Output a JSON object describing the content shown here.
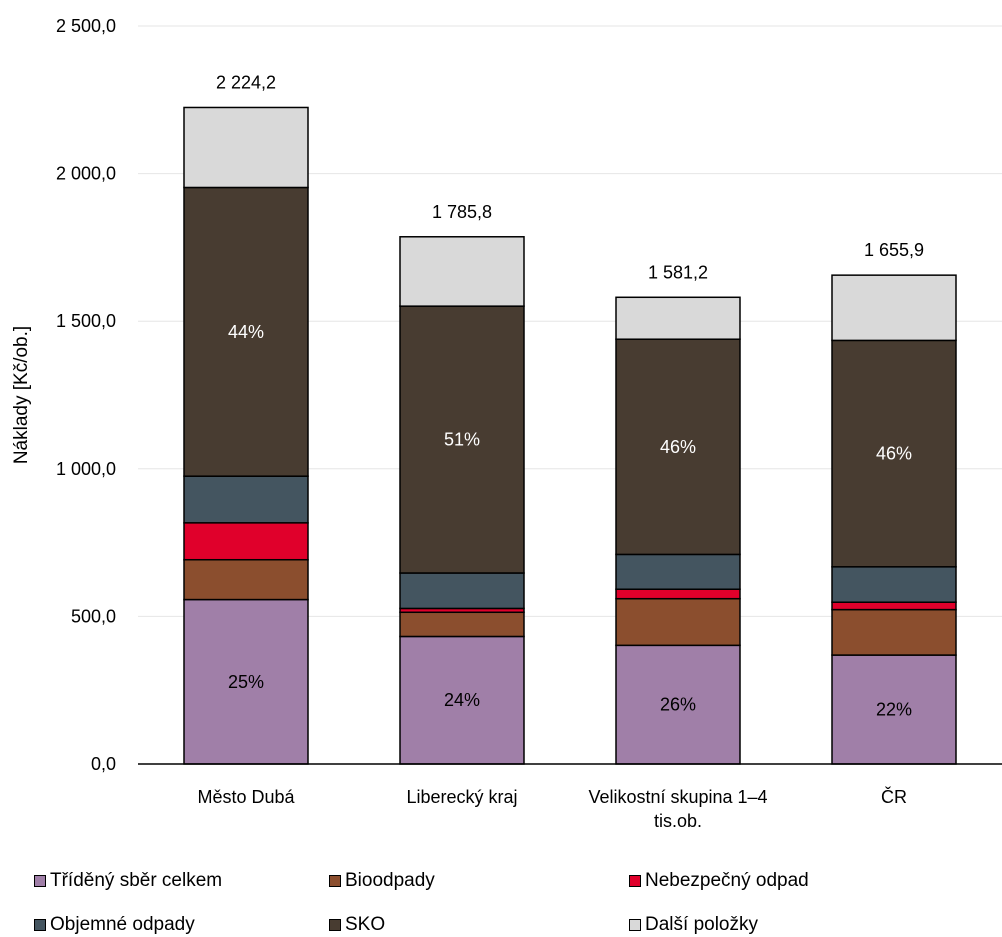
{
  "chart_data": {
    "type": "bar",
    "stacked": true,
    "ylabel": "Náklady [Kč/ob.]",
    "ylim": [
      0,
      2500
    ],
    "yticks": [
      "0,0",
      "500,0",
      "1 000,0",
      "1 500,0",
      "2 000,0",
      "2 500,0"
    ],
    "ytick_values": [
      0,
      500,
      1000,
      1500,
      2000,
      2500
    ],
    "grid": true,
    "legend_position": "bottom",
    "categories": [
      "Město Dubá",
      "Liberecký kraj",
      "Velikostní skupina 1–4 tis.ob.",
      "ČR"
    ],
    "category_lines": [
      [
        "Město Dubá"
      ],
      [
        "Liberecký kraj"
      ],
      [
        "Velikostní skupina 1–4",
        "tis.ob."
      ],
      [
        "ČR"
      ]
    ],
    "totals": [
      "2 224,2",
      "1 785,8",
      "1 581,2",
      "1 655,9"
    ],
    "series": [
      {
        "name": "Tříděný sběr celkem",
        "color": "#a07fa8",
        "values": [
          557,
          432,
          402,
          369
        ],
        "labels": [
          "25%",
          "24%",
          "26%",
          "22%"
        ],
        "label_color": "#000000"
      },
      {
        "name": "Bioodpady",
        "color": "#8b4e2e",
        "values": [
          135,
          82,
          158,
          154
        ],
        "labels": [
          "",
          "",
          "",
          ""
        ]
      },
      {
        "name": "Nebezpečný odpad",
        "color": "#e0002b",
        "values": [
          125,
          13,
          32,
          25
        ],
        "labels": [
          "",
          "",
          "",
          ""
        ]
      },
      {
        "name": "Objemné odpady",
        "color": "#445560",
        "values": [
          158,
          120,
          118,
          120
        ],
        "labels": [
          "",
          "",
          "",
          ""
        ]
      },
      {
        "name": "SKO",
        "color": "#483c31",
        "values": [
          978,
          904,
          729,
          767
        ],
        "labels": [
          "44%",
          "51%",
          "46%",
          "46%"
        ],
        "label_color": "#ffffff"
      },
      {
        "name": "Další položky",
        "color": "#d9d9d9",
        "values": [
          271,
          235,
          142,
          221
        ],
        "labels": [
          "",
          "",
          "",
          ""
        ]
      }
    ]
  }
}
